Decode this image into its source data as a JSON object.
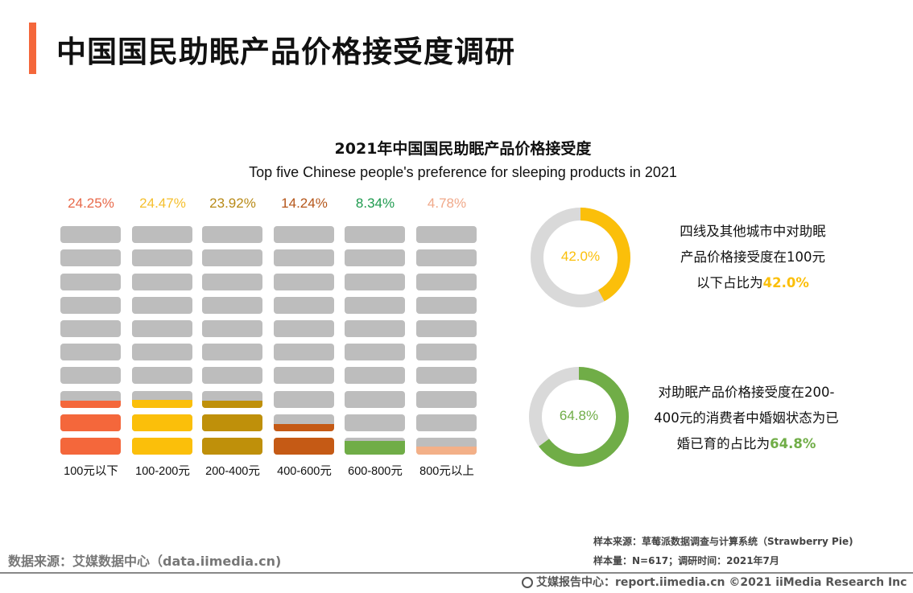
{
  "page_title": "中国国民助眠产品价格接受度调研",
  "chart_data": {
    "type": "bar",
    "title": "2021年中国国民助眠产品价格接受度",
    "subtitle": "Top five Chinese people's preference for sleeping products in 2021",
    "categories": [
      "100元以下",
      "100-200元",
      "200-400元",
      "400-600元",
      "600-800元",
      "800元以上"
    ],
    "values": [
      24.25,
      24.47,
      23.92,
      14.24,
      8.34,
      4.78
    ],
    "value_labels": [
      "24.25%",
      "24.47%",
      "23.92%",
      "14.24%",
      "8.34%",
      "4.78%"
    ],
    "colors": [
      "#f4673b",
      "#fbbf0a",
      "#bf900a",
      "#c55a15",
      "#70ad47",
      "#f3b088"
    ],
    "label_colors": [
      "#e8694a",
      "#f5bf2c",
      "#b88a17",
      "#b5561a",
      "#1e9a4e",
      "#f0a98a"
    ],
    "unit": "%",
    "blocks_per_column": 10,
    "block_unit": 10
  },
  "donuts": [
    {
      "value": 42.0,
      "label": "42.0%",
      "color": "#fbbf0a",
      "track": "#d9d9d9",
      "desc_lines": [
        "四线及其他城市中对助眠",
        "产品价格接受度在100元",
        "以下占比为"
      ],
      "highlight": "42.0%"
    },
    {
      "value": 64.8,
      "label": "64.8%",
      "color": "#70ad47",
      "track": "#d9d9d9",
      "desc_lines": [
        "对助眠产品价格接受度在200-",
        "400元的消费者中婚姻状态为已",
        "婚已育的占比为"
      ],
      "highlight": "64.8%"
    }
  ],
  "footer": {
    "data_source": "数据来源：艾媒数据中心（data.iimedia.cn)",
    "sample_source": "样本来源：草莓派数据调查与计算系统（Strawberry Pie)",
    "sample_size": "样本量：N=617；调研时间：2021年7月",
    "copyright": "艾媒报告中心：report.iimedia.cn   ©2021  iiMedia Research  Inc"
  }
}
